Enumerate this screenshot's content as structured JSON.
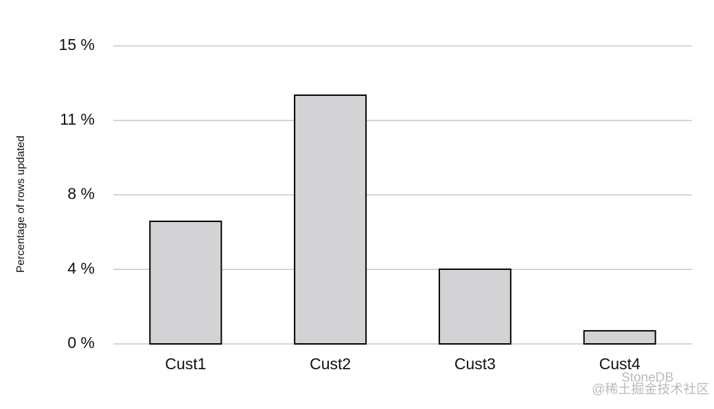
{
  "chart_data": {
    "type": "bar",
    "y_label": "Percentage of rows updated",
    "categories": [
      "Cust1",
      "Cust2",
      "Cust3",
      "Cust4"
    ],
    "values": [
      6.17,
      12.52,
      3.76,
      0.66
    ],
    "color": "#d3d3d5",
    "ylim": [
      0,
      15
    ],
    "yticks": [
      {
        "value": 0,
        "label": "0 %"
      },
      {
        "value": 3.75,
        "label": "4 %"
      },
      {
        "value": 7.5,
        "label": "8 %"
      },
      {
        "value": 11.25,
        "label": "11 %"
      },
      {
        "value": 15,
        "label": "15 %"
      }
    ],
    "grid": true
  },
  "watermark": {
    "brand": "StoneDB",
    "site": "@稀土掘金技术社区"
  }
}
